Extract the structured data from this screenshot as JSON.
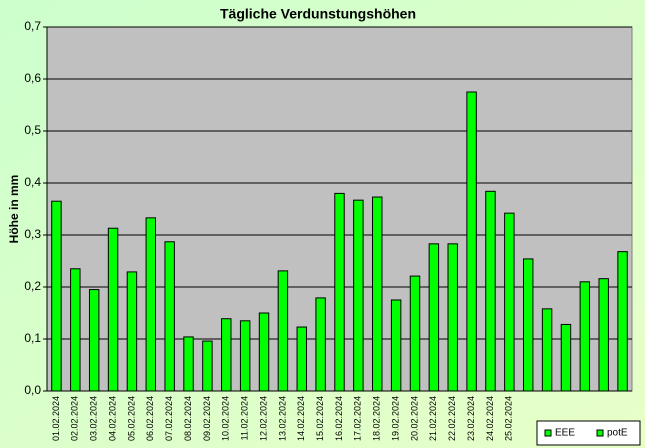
{
  "chart_data": {
    "type": "bar",
    "title": "Tägliche Verdunstungshöhen",
    "y_label": "Höhe in mm",
    "categories": [
      "01.02.2024",
      "02.02.2024",
      "03.02.2024",
      "04.02.2024",
      "05.02.2024",
      "06.02.2024",
      "07.02.2024",
      "08.02.2024",
      "09.02.2024",
      "10.02.2024",
      "11.02.2024",
      "12.02.2024",
      "13.02.2024",
      "14.02.2024",
      "15.02.2024",
      "16.02.2024",
      "17.02.2024",
      "18.02.2024",
      "19.02.2024",
      "20.02.2024",
      "21.02.2024",
      "22.02.2024",
      "23.02.2024",
      "24.02.2024",
      "25.02.2024",
      null,
      null,
      null,
      null,
      null,
      null
    ],
    "series": [
      {
        "name": "EEE",
        "color": "#00ff00",
        "values": [
          0.365,
          0.235,
          0.195,
          0.313,
          0.229,
          0.333,
          0.287,
          0.104,
          0.096,
          0.139,
          0.135,
          0.15,
          0.231,
          0.123,
          0.179,
          0.38,
          0.367,
          0.373,
          0.175,
          0.221,
          0.283,
          0.283,
          0.575,
          0.384,
          0.342,
          0.254,
          0.158,
          0.128,
          0.21,
          0.216,
          0.268
        ]
      },
      {
        "name": "potE",
        "color": "#00ff00",
        "values": [
          null,
          null,
          null,
          null,
          null,
          null,
          null,
          null,
          null,
          null,
          null,
          null,
          null,
          null,
          null,
          null,
          null,
          null,
          null,
          null,
          null,
          null,
          null,
          null,
          null,
          null,
          null,
          null,
          null,
          null,
          null
        ]
      }
    ],
    "ylim": [
      0,
      0.7
    ],
    "yticks": [
      {
        "value": 0,
        "label": "0,0"
      },
      {
        "value": 0.1,
        "label": "0,1"
      },
      {
        "value": 0.2,
        "label": "0,2"
      },
      {
        "value": 0.3,
        "label": "0,3"
      },
      {
        "value": 0.4,
        "label": "0,4"
      },
      {
        "value": 0.5,
        "label": "0,5"
      },
      {
        "value": 0.6,
        "label": "0,6"
      },
      {
        "value": 0.7,
        "label": "0,7"
      }
    ],
    "grid": true
  }
}
